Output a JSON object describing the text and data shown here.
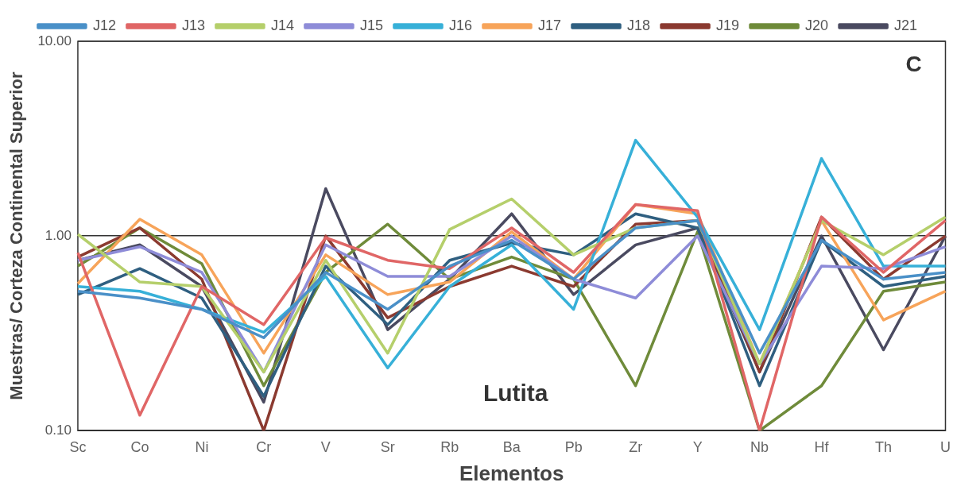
{
  "chart_data": {
    "type": "line",
    "xlabel": "Elementos",
    "ylabel": "Muestras/ Corteza Continental Superior",
    "annotations": [
      "C",
      "Lutita"
    ],
    "categories": [
      "Sc",
      "Co",
      "Ni",
      "Cr",
      "V",
      "Sr",
      "Rb",
      "Ba",
      "Pb",
      "Zr",
      "Y",
      "Nb",
      "Hf",
      "Th",
      "U"
    ],
    "log": true,
    "ylim": [
      0.1,
      10
    ],
    "yticks": [
      {
        "value": 0.1,
        "label": "0.10"
      },
      {
        "value": 1,
        "label": "1.00"
      },
      {
        "value": 10,
        "label": "10.00"
      }
    ],
    "grid": "y",
    "legend": "top",
    "marker": "none",
    "line_style": "solid",
    "series": [
      {
        "name": "J12",
        "color": "#4a90c8",
        "values": [
          0.52,
          0.48,
          0.42,
          0.3,
          0.65,
          0.42,
          0.7,
          0.95,
          0.6,
          1.1,
          1.2,
          0.25,
          0.95,
          0.6,
          0.65
        ]
      },
      {
        "name": "J13",
        "color": "#e06666",
        "values": [
          0.82,
          0.12,
          0.55,
          0.35,
          0.98,
          0.75,
          0.68,
          1.1,
          0.65,
          1.45,
          1.35,
          0.1,
          1.25,
          0.65,
          1.2
        ]
      },
      {
        "name": "J14",
        "color": "#b5cf6b",
        "values": [
          1.02,
          0.58,
          0.55,
          0.2,
          0.75,
          0.25,
          1.08,
          1.55,
          0.8,
          1.1,
          1.2,
          0.22,
          1.2,
          0.8,
          1.25
        ]
      },
      {
        "name": "J15",
        "color": "#8e8cd8",
        "values": [
          0.75,
          0.88,
          0.65,
          0.2,
          0.9,
          0.62,
          0.62,
          1.0,
          0.6,
          0.48,
          1.0,
          0.22,
          0.7,
          0.68,
          0.88
        ]
      },
      {
        "name": "J16",
        "color": "#37b0d8",
        "values": [
          0.55,
          0.52,
          0.42,
          0.32,
          0.62,
          0.21,
          0.55,
          0.9,
          0.42,
          3.1,
          1.25,
          0.33,
          2.5,
          0.7,
          0.7
        ]
      },
      {
        "name": "J17",
        "color": "#f7a45a",
        "values": [
          0.57,
          1.22,
          0.8,
          0.25,
          0.8,
          0.5,
          0.58,
          1.05,
          0.6,
          1.45,
          1.3,
          0.22,
          1.2,
          0.37,
          0.52
        ]
      },
      {
        "name": "J18",
        "color": "#2f5f80",
        "values": [
          0.5,
          0.68,
          0.48,
          0.15,
          0.7,
          0.35,
          0.75,
          0.92,
          0.8,
          1.3,
          1.1,
          0.17,
          0.95,
          0.55,
          0.62
        ]
      },
      {
        "name": "J19",
        "color": "#8b3a30",
        "values": [
          0.78,
          1.1,
          0.6,
          0.1,
          1.0,
          0.38,
          0.55,
          0.7,
          0.55,
          1.15,
          1.2,
          0.2,
          1.25,
          0.6,
          1.0
        ]
      },
      {
        "name": "J20",
        "color": "#6f8b3a",
        "values": [
          0.7,
          1.1,
          0.72,
          0.17,
          0.65,
          1.15,
          0.6,
          0.78,
          0.6,
          0.17,
          1.05,
          0.1,
          0.17,
          0.52,
          0.58
        ]
      },
      {
        "name": "J21",
        "color": "#4a4a60",
        "values": [
          0.75,
          0.9,
          0.55,
          0.14,
          1.75,
          0.33,
          0.6,
          1.3,
          0.5,
          0.9,
          1.1,
          0.2,
          1.0,
          0.26,
          1.0
        ]
      }
    ]
  }
}
